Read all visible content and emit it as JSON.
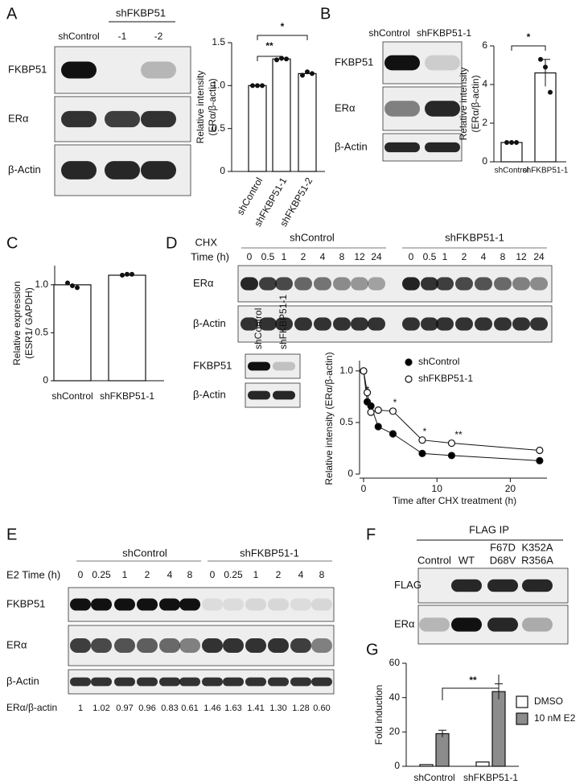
{
  "labels": [
    "A",
    "B",
    "C",
    "D",
    "E",
    "F",
    "G"
  ],
  "blots": [
    {
      "header": "shFKBP51",
      "lanes": [
        "shControl",
        "-1",
        "-2"
      ],
      "rows": [
        "FKBP51",
        "ERα",
        "β-Actin"
      ]
    },
    {
      "lanes": [
        "shControl",
        "shFKBP51-1"
      ],
      "rows": [
        "FKBP51",
        "ERα",
        "β-Actin"
      ]
    },
    {
      "header": "CHX",
      "time_label": "Time (h)",
      "groups": [
        "shControl",
        "shFKBP51-1"
      ],
      "lanes": [
        "0",
        "0.5",
        "1",
        "2",
        "4",
        "8",
        "12",
        "24"
      ],
      "rows": [
        "ERα",
        "β-Actin"
      ]
    },
    {
      "lanes": [
        "shControl",
        "shFKBP51-1"
      ],
      "rows": [
        "FKBP51",
        "β-Actin"
      ]
    },
    {
      "time_label": "E2 Time (h)",
      "groups": [
        "shControl",
        "shFKBP51-1"
      ],
      "lanes": [
        "0",
        "0.25",
        "1",
        "2",
        "4",
        "8"
      ],
      "rows": [
        "FKBP51",
        "ERα",
        "β-Actin"
      ],
      "ratio_label": "ERα/β-actin",
      "ratios": [
        "1",
        "1.02",
        "0.97",
        "0.96",
        "0.83",
        "0.61",
        "1.46",
        "1.63",
        "1.41",
        "1.30",
        "1.28",
        "0.60"
      ]
    },
    {
      "header": "FLAG IP",
      "lanes": [
        [
          "Control"
        ],
        [
          "WT"
        ],
        [
          "F67D",
          "D68V"
        ],
        [
          "K352A",
          "R356A"
        ]
      ],
      "rows": [
        "FLAG",
        "ERα"
      ]
    }
  ],
  "chart_data": [
    {
      "type": "bar",
      "ylabel": [
        "Relative intensity",
        "(ERα/β-actin)"
      ],
      "categories": [
        "shControl",
        "shFKBP51-1",
        "shFKBP51-2"
      ],
      "values": [
        1.0,
        1.31,
        1.14
      ],
      "points": [
        [
          1.0,
          1.0,
          1.0
        ],
        [
          1.3,
          1.32,
          1.31
        ],
        [
          1.12,
          1.16,
          1.14
        ]
      ],
      "color": "#ffffff",
      "ylim": [
        0,
        1.5
      ],
      "yticks": [
        0,
        0.5,
        {
          "value": 1,
          "label": "1.0"
        },
        1.5
      ],
      "annotations": [
        "**",
        "*"
      ]
    },
    {
      "type": "bar",
      "ylabel": [
        "Relative intensity",
        "(ERα/β-actin)"
      ],
      "categories": [
        "shControl",
        "shFKBP51-1"
      ],
      "values": [
        1.0,
        4.6
      ],
      "errors": [
        0,
        0.7
      ],
      "points": [
        [
          1.0,
          1.0,
          1.0
        ],
        [
          5.3,
          4.9,
          3.6
        ]
      ],
      "color": "#ffffff",
      "ylim": [
        0,
        6
      ],
      "yticks": [
        0,
        2,
        4,
        6
      ],
      "annotations": [
        "*"
      ]
    },
    {
      "type": "bar",
      "ylabel": [
        "Relative expression",
        "(ESR1/ GAPDH)"
      ],
      "categories": [
        "shControl",
        "shFKBP51-1"
      ],
      "values": [
        1.0,
        1.1
      ],
      "points": [
        [
          1.02,
          0.99,
          0.97
        ],
        [
          1.1,
          1.11,
          1.11
        ]
      ],
      "color": "#ffffff",
      "ylim": [
        0,
        1.2
      ],
      "yticks": [
        0,
        0.5,
        {
          "value": 1,
          "label": "1.0"
        }
      ]
    },
    {
      "type": "line",
      "ylabel": "Relative intensity (ERα/β-actin)",
      "xlabel": "Time after CHX treatment (h)",
      "x": [
        0,
        0.5,
        1,
        2,
        4,
        8,
        12,
        24
      ],
      "series": [
        {
          "name": "shControl",
          "color": "#000000",
          "values": [
            1.0,
            0.7,
            0.66,
            0.46,
            0.39,
            0.2,
            0.18,
            0.13
          ]
        },
        {
          "name": "shFKBP51-1",
          "color": "#ffffff",
          "values": [
            1.0,
            0.79,
            0.6,
            0.62,
            0.61,
            0.33,
            0.3,
            0.23
          ]
        }
      ],
      "xlim": [
        0,
        25
      ],
      "xticks": [
        0,
        10,
        20
      ],
      "ylim": [
        0,
        1.1
      ],
      "yticks": [
        0,
        0.5,
        {
          "value": 1,
          "label": "1.0"
        }
      ],
      "annotations": [
        "*",
        "*",
        "*",
        "**"
      ]
    },
    {
      "type": "grouped_bar",
      "ylabel": "Fold induction",
      "categories": [
        "shControl",
        "shFKBP51-1"
      ],
      "series": [
        {
          "name": "DMSO",
          "color": "#ffffff",
          "values": [
            1,
            2.5
          ]
        },
        {
          "name": "10 nM E2",
          "color": "#8c8c8c",
          "values": [
            19,
            43.5
          ],
          "errors": [
            2,
            4.5
          ]
        }
      ],
      "ylim": [
        0,
        60
      ],
      "yticks": [
        0,
        20,
        40,
        60
      ],
      "annotations": [
        "**"
      ]
    }
  ]
}
